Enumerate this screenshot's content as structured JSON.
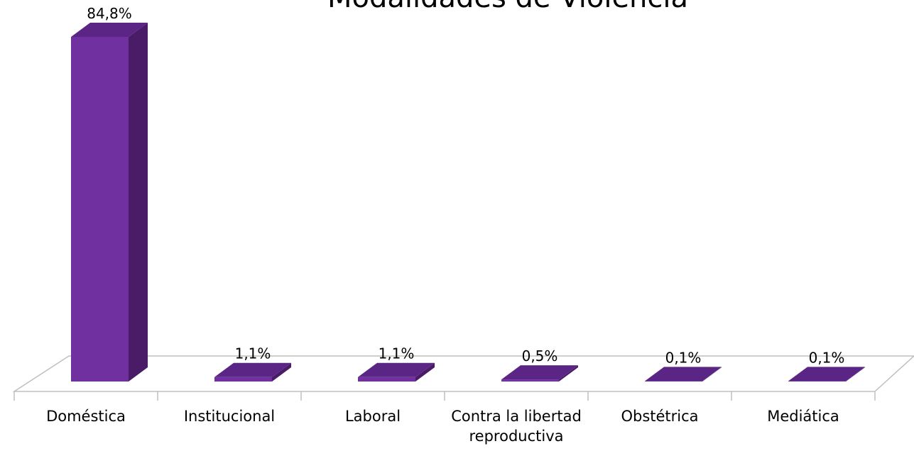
{
  "chart_data": {
    "type": "bar3d",
    "title": "Modalidades de Violencia",
    "categories": [
      "Doméstica",
      "Institucional",
      "Laboral",
      "Contra la libertad reproductiva",
      "Obstétrica",
      "Mediática"
    ],
    "values": [
      84.8,
      1.1,
      1.1,
      0.5,
      0.1,
      0.1
    ],
    "value_labels": [
      "84,8%",
      "1,1%",
      "1,1%",
      "0,5%",
      "0,1%",
      "0,1%"
    ],
    "color": "#7030a0"
  }
}
